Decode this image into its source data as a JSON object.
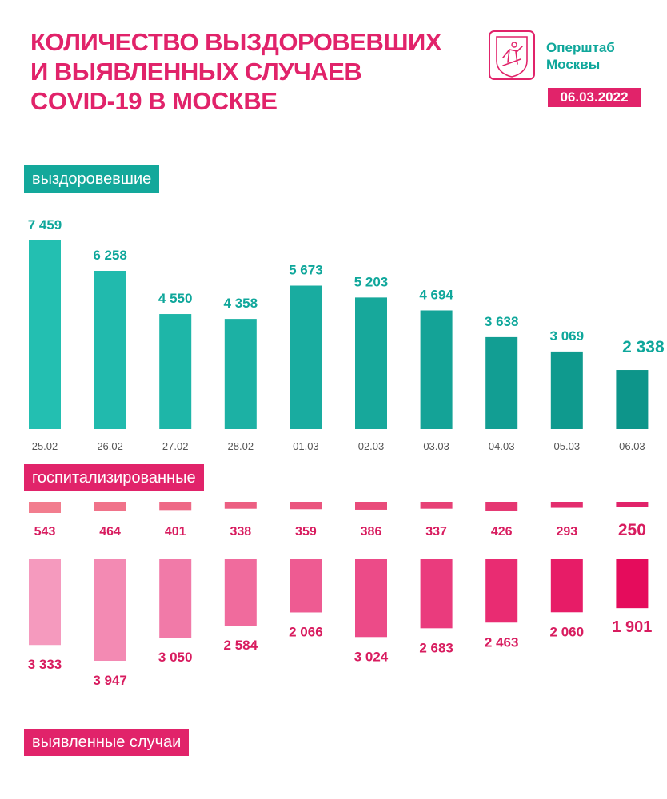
{
  "title_lines": [
    "Количество выздоровевших",
    "и выявленных случаев",
    "COVID-19 в Москве"
  ],
  "org_lines": [
    "Оперштаб",
    "Москвы"
  ],
  "date": "06.03.2022",
  "labels": {
    "recovered": "выздоровевшие",
    "hospitalized": "госпитализированные",
    "cases": "выявленные случаи"
  },
  "colors": {
    "teal": "#13a89b",
    "teal_dark": "#0d958a",
    "pink": "#e1236a",
    "value_text_teal": "#0fa79b",
    "value_text_pink": "#d81c5f",
    "date_text": "#555555"
  },
  "icons": [
    "moscow-coat-of-arms-icon"
  ],
  "chart_data": [
    {
      "type": "bar",
      "series_key": "recovered",
      "categories": [
        "25.02",
        "26.02",
        "27.02",
        "28.02",
        "01.03",
        "02.03",
        "03.03",
        "04.03",
        "05.03",
        "06.03"
      ],
      "values": [
        7459,
        6258,
        4550,
        4358,
        5673,
        5203,
        4694,
        3638,
        3069,
        2338
      ],
      "value_labels": [
        "7 459",
        "6 258",
        "4 550",
        "4 358",
        "5 673",
        "5 203",
        "4 694",
        "3 638",
        "3 069",
        "2 338"
      ]
    },
    {
      "type": "bar",
      "series_key": "hospitalized",
      "categories": [
        "25.02",
        "26.02",
        "27.02",
        "28.02",
        "01.03",
        "02.03",
        "03.03",
        "04.03",
        "05.03",
        "06.03"
      ],
      "values": [
        543,
        464,
        401,
        338,
        359,
        386,
        337,
        426,
        293,
        250
      ],
      "value_labels": [
        "543",
        "464",
        "401",
        "338",
        "359",
        "386",
        "337",
        "426",
        "293",
        "250"
      ]
    },
    {
      "type": "bar",
      "series_key": "cases",
      "categories": [
        "25.02",
        "26.02",
        "27.02",
        "28.02",
        "01.03",
        "02.03",
        "03.03",
        "04.03",
        "05.03",
        "06.03"
      ],
      "values": [
        3333,
        3947,
        3050,
        2584,
        2066,
        3024,
        2683,
        2463,
        2060,
        1901
      ],
      "value_labels": [
        "3 333",
        "3 947",
        "3 050",
        "2 584",
        "2 066",
        "3 024",
        "2 683",
        "2 463",
        "2 060",
        "1 901"
      ]
    }
  ]
}
